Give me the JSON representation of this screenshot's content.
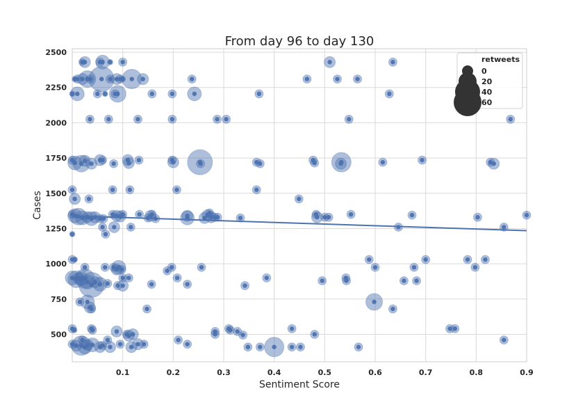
{
  "chart_data": {
    "type": "scatter",
    "title": "From day 96 to day 130",
    "xlabel": "Sentiment Score",
    "ylabel": "Cases",
    "xlim": [
      0,
      0.9
    ],
    "ylim": [
      305,
      2525
    ],
    "xticks": [
      0.1,
      0.2,
      0.3,
      0.4,
      0.5,
      0.6,
      0.7,
      0.8,
      0.9
    ],
    "xtick_labels": [
      "0.1",
      "0.2",
      "0.3",
      "0.4",
      "0.5",
      "0.6",
      "0.7",
      "0.8",
      "0.9"
    ],
    "yticks": [
      500,
      750,
      1000,
      1250,
      1500,
      1750,
      2000,
      2250,
      2500
    ],
    "ytick_labels": [
      "500",
      "750",
      "1000",
      "1250",
      "1500",
      "1750",
      "2000",
      "2250",
      "2500"
    ],
    "grid": true,
    "point_color": "#4c72b0",
    "trend_color": "#4c72b0",
    "legend": {
      "title": "retweets",
      "placement": "top-right",
      "entries": [
        "0",
        "20",
        "40",
        "60"
      ],
      "entry_values": [
        0,
        20,
        40,
        60
      ]
    },
    "trendline": {
      "x": [
        0,
        0.9
      ],
      "y": [
        1340,
        1235
      ]
    },
    "points": [
      {
        "x": 0.02,
        "y": 2430,
        "r": 5
      },
      {
        "x": 0.025,
        "y": 2430,
        "r": 8
      },
      {
        "x": 0.055,
        "y": 2430,
        "r": 6
      },
      {
        "x": 0.06,
        "y": 2430,
        "r": 10
      },
      {
        "x": 0.075,
        "y": 2430,
        "r": 4
      },
      {
        "x": 0.1,
        "y": 2430,
        "r": 6
      },
      {
        "x": 0.51,
        "y": 2430,
        "r": 8
      },
      {
        "x": 0.635,
        "y": 2430,
        "r": 6
      },
      {
        "x": 0.0,
        "y": 2205,
        "r": 4
      },
      {
        "x": 0.005,
        "y": 2310,
        "r": 4
      },
      {
        "x": 0.01,
        "y": 2310,
        "r": 6
      },
      {
        "x": 0.01,
        "y": 2205,
        "r": 10
      },
      {
        "x": 0.02,
        "y": 2310,
        "r": 8
      },
      {
        "x": 0.03,
        "y": 2310,
        "r": 12
      },
      {
        "x": 0.035,
        "y": 2310,
        "r": 6
      },
      {
        "x": 0.05,
        "y": 2205,
        "r": 6
      },
      {
        "x": 0.058,
        "y": 2310,
        "r": 18
      },
      {
        "x": 0.065,
        "y": 2205,
        "r": 4
      },
      {
        "x": 0.075,
        "y": 2310,
        "r": 6
      },
      {
        "x": 0.085,
        "y": 2205,
        "r": 6
      },
      {
        "x": 0.088,
        "y": 2310,
        "r": 8
      },
      {
        "x": 0.09,
        "y": 2205,
        "r": 12
      },
      {
        "x": 0.095,
        "y": 2310,
        "r": 6
      },
      {
        "x": 0.1,
        "y": 2310,
        "r": 4
      },
      {
        "x": 0.118,
        "y": 2310,
        "r": 14
      },
      {
        "x": 0.14,
        "y": 2310,
        "r": 8
      },
      {
        "x": 0.158,
        "y": 2205,
        "r": 6
      },
      {
        "x": 0.198,
        "y": 2205,
        "r": 6
      },
      {
        "x": 0.237,
        "y": 2310,
        "r": 6
      },
      {
        "x": 0.242,
        "y": 2205,
        "r": 10
      },
      {
        "x": 0.37,
        "y": 2205,
        "r": 6
      },
      {
        "x": 0.465,
        "y": 2310,
        "r": 6
      },
      {
        "x": 0.525,
        "y": 2310,
        "r": 6
      },
      {
        "x": 0.565,
        "y": 2310,
        "r": 6
      },
      {
        "x": 0.628,
        "y": 2205,
        "r": 6
      },
      {
        "x": 0.035,
        "y": 2025,
        "r": 6
      },
      {
        "x": 0.072,
        "y": 2025,
        "r": 6
      },
      {
        "x": 0.13,
        "y": 2025,
        "r": 6
      },
      {
        "x": 0.198,
        "y": 2025,
        "r": 6
      },
      {
        "x": 0.287,
        "y": 2025,
        "r": 6
      },
      {
        "x": 0.305,
        "y": 2025,
        "r": 6
      },
      {
        "x": 0.548,
        "y": 2025,
        "r": 6
      },
      {
        "x": 0.868,
        "y": 2025,
        "r": 6
      },
      {
        "x": 0.0,
        "y": 1735,
        "r": 6
      },
      {
        "x": 0.005,
        "y": 1715,
        "r": 10
      },
      {
        "x": 0.018,
        "y": 1710,
        "r": 12
      },
      {
        "x": 0.025,
        "y": 1730,
        "r": 8
      },
      {
        "x": 0.038,
        "y": 1710,
        "r": 8
      },
      {
        "x": 0.055,
        "y": 1735,
        "r": 8
      },
      {
        "x": 0.06,
        "y": 1735,
        "r": 6
      },
      {
        "x": 0.082,
        "y": 1710,
        "r": 6
      },
      {
        "x": 0.11,
        "y": 1735,
        "r": 8
      },
      {
        "x": 0.112,
        "y": 1715,
        "r": 8
      },
      {
        "x": 0.132,
        "y": 1735,
        "r": 6
      },
      {
        "x": 0.198,
        "y": 1735,
        "r": 6
      },
      {
        "x": 0.2,
        "y": 1720,
        "r": 8
      },
      {
        "x": 0.253,
        "y": 1720,
        "r": 18
      },
      {
        "x": 0.254,
        "y": 1710,
        "r": 6
      },
      {
        "x": 0.365,
        "y": 1720,
        "r": 6
      },
      {
        "x": 0.372,
        "y": 1710,
        "r": 6
      },
      {
        "x": 0.477,
        "y": 1735,
        "r": 6
      },
      {
        "x": 0.48,
        "y": 1715,
        "r": 6
      },
      {
        "x": 0.533,
        "y": 1720,
        "r": 14
      },
      {
        "x": 0.532,
        "y": 1710,
        "r": 8
      },
      {
        "x": 0.615,
        "y": 1720,
        "r": 6
      },
      {
        "x": 0.693,
        "y": 1735,
        "r": 6
      },
      {
        "x": 0.828,
        "y": 1720,
        "r": 6
      },
      {
        "x": 0.835,
        "y": 1710,
        "r": 8
      },
      {
        "x": 0.0,
        "y": 1525,
        "r": 6
      },
      {
        "x": 0.08,
        "y": 1525,
        "r": 6
      },
      {
        "x": 0.114,
        "y": 1525,
        "r": 6
      },
      {
        "x": 0.207,
        "y": 1525,
        "r": 6
      },
      {
        "x": 0.365,
        "y": 1525,
        "r": 6
      },
      {
        "x": 0.005,
        "y": 1460,
        "r": 8
      },
      {
        "x": 0.033,
        "y": 1460,
        "r": 6
      },
      {
        "x": 0.449,
        "y": 1460,
        "r": 6
      },
      {
        "x": 0.0,
        "y": 1350,
        "r": 6
      },
      {
        "x": 0.005,
        "y": 1340,
        "r": 10
      },
      {
        "x": 0.012,
        "y": 1335,
        "r": 12
      },
      {
        "x": 0.02,
        "y": 1325,
        "r": 10
      },
      {
        "x": 0.03,
        "y": 1330,
        "r": 8
      },
      {
        "x": 0.038,
        "y": 1320,
        "r": 10
      },
      {
        "x": 0.045,
        "y": 1330,
        "r": 8
      },
      {
        "x": 0.055,
        "y": 1320,
        "r": 6
      },
      {
        "x": 0.062,
        "y": 1320,
        "r": 6
      },
      {
        "x": 0.08,
        "y": 1350,
        "r": 6
      },
      {
        "x": 0.088,
        "y": 1340,
        "r": 8
      },
      {
        "x": 0.095,
        "y": 1335,
        "r": 8
      },
      {
        "x": 0.1,
        "y": 1350,
        "r": 6
      },
      {
        "x": 0.133,
        "y": 1350,
        "r": 6
      },
      {
        "x": 0.15,
        "y": 1325,
        "r": 6
      },
      {
        "x": 0.155,
        "y": 1340,
        "r": 8
      },
      {
        "x": 0.158,
        "y": 1350,
        "r": 6
      },
      {
        "x": 0.165,
        "y": 1320,
        "r": 6
      },
      {
        "x": 0.228,
        "y": 1340,
        "r": 8
      },
      {
        "x": 0.228,
        "y": 1325,
        "r": 10
      },
      {
        "x": 0.262,
        "y": 1325,
        "r": 8
      },
      {
        "x": 0.268,
        "y": 1345,
        "r": 8
      },
      {
        "x": 0.272,
        "y": 1360,
        "r": 6
      },
      {
        "x": 0.275,
        "y": 1330,
        "r": 8
      },
      {
        "x": 0.282,
        "y": 1330,
        "r": 6
      },
      {
        "x": 0.288,
        "y": 1330,
        "r": 6
      },
      {
        "x": 0.333,
        "y": 1325,
        "r": 6
      },
      {
        "x": 0.483,
        "y": 1350,
        "r": 6
      },
      {
        "x": 0.485,
        "y": 1330,
        "r": 8
      },
      {
        "x": 0.5,
        "y": 1330,
        "r": 6
      },
      {
        "x": 0.508,
        "y": 1330,
        "r": 6
      },
      {
        "x": 0.552,
        "y": 1350,
        "r": 6
      },
      {
        "x": 0.673,
        "y": 1345,
        "r": 6
      },
      {
        "x": 0.803,
        "y": 1330,
        "r": 6
      },
      {
        "x": 0.9,
        "y": 1345,
        "r": 6
      },
      {
        "x": 0.0,
        "y": 1210,
        "r": 4
      },
      {
        "x": 0.06,
        "y": 1260,
        "r": 6
      },
      {
        "x": 0.066,
        "y": 1210,
        "r": 6
      },
      {
        "x": 0.083,
        "y": 1260,
        "r": 8
      },
      {
        "x": 0.116,
        "y": 1260,
        "r": 6
      },
      {
        "x": 0.646,
        "y": 1260,
        "r": 6
      },
      {
        "x": 0.855,
        "y": 1260,
        "r": 6
      },
      {
        "x": 0.0,
        "y": 1030,
        "r": 6
      },
      {
        "x": 0.005,
        "y": 1030,
        "r": 4
      },
      {
        "x": 0.0,
        "y": 900,
        "r": 10
      },
      {
        "x": 0.008,
        "y": 890,
        "r": 12
      },
      {
        "x": 0.012,
        "y": 895,
        "r": 8
      },
      {
        "x": 0.018,
        "y": 895,
        "r": 10
      },
      {
        "x": 0.025,
        "y": 975,
        "r": 6
      },
      {
        "x": 0.025,
        "y": 895,
        "r": 14
      },
      {
        "x": 0.03,
        "y": 870,
        "r": 10
      },
      {
        "x": 0.038,
        "y": 850,
        "r": 18
      },
      {
        "x": 0.045,
        "y": 870,
        "r": 8
      },
      {
        "x": 0.055,
        "y": 855,
        "r": 10
      },
      {
        "x": 0.065,
        "y": 975,
        "r": 6
      },
      {
        "x": 0.07,
        "y": 860,
        "r": 6
      },
      {
        "x": 0.082,
        "y": 975,
        "r": 6
      },
      {
        "x": 0.088,
        "y": 960,
        "r": 8
      },
      {
        "x": 0.092,
        "y": 975,
        "r": 10
      },
      {
        "x": 0.098,
        "y": 960,
        "r": 6
      },
      {
        "x": 0.1,
        "y": 900,
        "r": 6
      },
      {
        "x": 0.09,
        "y": 845,
        "r": 6
      },
      {
        "x": 0.1,
        "y": 845,
        "r": 8
      },
      {
        "x": 0.112,
        "y": 900,
        "r": 6
      },
      {
        "x": 0.157,
        "y": 855,
        "r": 6
      },
      {
        "x": 0.188,
        "y": 950,
        "r": 6
      },
      {
        "x": 0.197,
        "y": 975,
        "r": 6
      },
      {
        "x": 0.208,
        "y": 900,
        "r": 6
      },
      {
        "x": 0.228,
        "y": 855,
        "r": 6
      },
      {
        "x": 0.256,
        "y": 975,
        "r": 6
      },
      {
        "x": 0.342,
        "y": 845,
        "r": 6
      },
      {
        "x": 0.385,
        "y": 900,
        "r": 6
      },
      {
        "x": 0.495,
        "y": 880,
        "r": 6
      },
      {
        "x": 0.542,
        "y": 900,
        "r": 6
      },
      {
        "x": 0.543,
        "y": 880,
        "r": 6
      },
      {
        "x": 0.588,
        "y": 1030,
        "r": 6
      },
      {
        "x": 0.6,
        "y": 975,
        "r": 6
      },
      {
        "x": 0.657,
        "y": 880,
        "r": 6
      },
      {
        "x": 0.677,
        "y": 975,
        "r": 6
      },
      {
        "x": 0.682,
        "y": 880,
        "r": 6
      },
      {
        "x": 0.7,
        "y": 1030,
        "r": 6
      },
      {
        "x": 0.783,
        "y": 1030,
        "r": 6
      },
      {
        "x": 0.798,
        "y": 975,
        "r": 6
      },
      {
        "x": 0.818,
        "y": 1030,
        "r": 6
      },
      {
        "x": 0.015,
        "y": 730,
        "r": 6
      },
      {
        "x": 0.03,
        "y": 730,
        "r": 10
      },
      {
        "x": 0.035,
        "y": 690,
        "r": 8
      },
      {
        "x": 0.038,
        "y": 680,
        "r": 6
      },
      {
        "x": 0.148,
        "y": 680,
        "r": 6
      },
      {
        "x": 0.598,
        "y": 730,
        "r": 12
      },
      {
        "x": 0.635,
        "y": 680,
        "r": 6
      },
      {
        "x": 0.0,
        "y": 540,
        "r": 6
      },
      {
        "x": 0.004,
        "y": 530,
        "r": 4
      },
      {
        "x": 0.038,
        "y": 540,
        "r": 6
      },
      {
        "x": 0.04,
        "y": 530,
        "r": 6
      },
      {
        "x": 0.088,
        "y": 520,
        "r": 8
      },
      {
        "x": 0.283,
        "y": 520,
        "r": 6
      },
      {
        "x": 0.31,
        "y": 540,
        "r": 6
      },
      {
        "x": 0.313,
        "y": 530,
        "r": 6
      },
      {
        "x": 0.327,
        "y": 520,
        "r": 6
      },
      {
        "x": 0.435,
        "y": 540,
        "r": 6
      },
      {
        "x": 0.48,
        "y": 500,
        "r": 6
      },
      {
        "x": 0.748,
        "y": 540,
        "r": 6
      },
      {
        "x": 0.758,
        "y": 540,
        "r": 6
      },
      {
        "x": 0.0,
        "y": 430,
        "r": 6
      },
      {
        "x": 0.008,
        "y": 420,
        "r": 8
      },
      {
        "x": 0.02,
        "y": 460,
        "r": 6
      },
      {
        "x": 0.018,
        "y": 420,
        "r": 14
      },
      {
        "x": 0.025,
        "y": 410,
        "r": 10
      },
      {
        "x": 0.03,
        "y": 425,
        "r": 8
      },
      {
        "x": 0.04,
        "y": 425,
        "r": 10
      },
      {
        "x": 0.055,
        "y": 410,
        "r": 8
      },
      {
        "x": 0.06,
        "y": 420,
        "r": 6
      },
      {
        "x": 0.07,
        "y": 460,
        "r": 6
      },
      {
        "x": 0.075,
        "y": 410,
        "r": 8
      },
      {
        "x": 0.095,
        "y": 430,
        "r": 6
      },
      {
        "x": 0.108,
        "y": 500,
        "r": 6
      },
      {
        "x": 0.112,
        "y": 490,
        "r": 8
      },
      {
        "x": 0.117,
        "y": 410,
        "r": 8
      },
      {
        "x": 0.12,
        "y": 500,
        "r": 8
      },
      {
        "x": 0.13,
        "y": 430,
        "r": 8
      },
      {
        "x": 0.142,
        "y": 430,
        "r": 6
      },
      {
        "x": 0.21,
        "y": 460,
        "r": 6
      },
      {
        "x": 0.228,
        "y": 430,
        "r": 6
      },
      {
        "x": 0.283,
        "y": 500,
        "r": 6
      },
      {
        "x": 0.338,
        "y": 495,
        "r": 6
      },
      {
        "x": 0.348,
        "y": 410,
        "r": 6
      },
      {
        "x": 0.372,
        "y": 410,
        "r": 6
      },
      {
        "x": 0.4,
        "y": 410,
        "r": 14
      },
      {
        "x": 0.435,
        "y": 410,
        "r": 6
      },
      {
        "x": 0.452,
        "y": 410,
        "r": 6
      },
      {
        "x": 0.567,
        "y": 410,
        "r": 6
      },
      {
        "x": 0.855,
        "y": 460,
        "r": 6
      }
    ]
  }
}
